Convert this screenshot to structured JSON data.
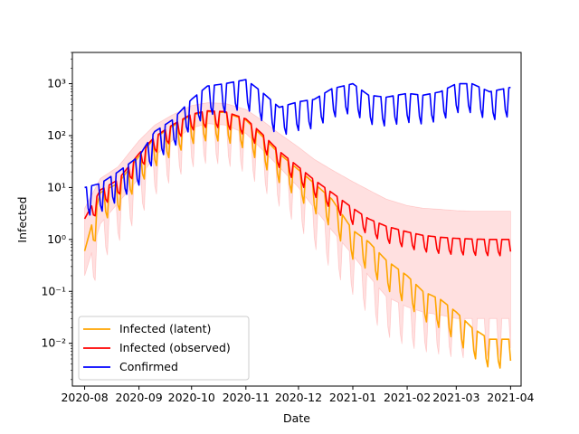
{
  "chart_data": {
    "type": "line",
    "title": "",
    "xlabel": "Date",
    "ylabel": "Infected",
    "yscale": "log",
    "ylim": [
      0.0015,
      4000
    ],
    "xlim": [
      "2020-07-25",
      "2021-04-07"
    ],
    "x_ticks": [
      "2020-08",
      "2020-09",
      "2020-10",
      "2020-11",
      "2020-12",
      "2021-01",
      "2021-02",
      "2021-03",
      "2021-04"
    ],
    "x_tick_dates": [
      "2020-08-01",
      "2020-09-01",
      "2020-10-01",
      "2020-11-01",
      "2020-12-01",
      "2021-01-01",
      "2021-02-01",
      "2021-03-01",
      "2021-04-01"
    ],
    "y_ticks": [
      {
        "value": 0.01,
        "label": "10⁻²"
      },
      {
        "value": 0.1,
        "label": "10⁻¹"
      },
      {
        "value": 1,
        "label": "10⁰"
      },
      {
        "value": 10,
        "label": "10¹"
      },
      {
        "value": 100,
        "label": "10²"
      },
      {
        "value": 1000,
        "label": "10³"
      }
    ],
    "legend_position": "lower-left",
    "grid": false,
    "series": [
      {
        "name": "Infected (latent)",
        "color": "#ffa500",
        "points": [
          [
            "2020-08-01",
            0.6
          ],
          [
            "2020-08-10",
            8
          ],
          [
            "2020-08-20",
            12
          ],
          [
            "2020-09-01",
            40
          ],
          [
            "2020-09-10",
            90
          ],
          [
            "2020-09-20",
            150
          ],
          [
            "2020-10-01",
            250
          ],
          [
            "2020-10-10",
            290
          ],
          [
            "2020-10-20",
            280
          ],
          [
            "2020-11-01",
            200
          ],
          [
            "2020-11-10",
            100
          ],
          [
            "2020-11-20",
            45
          ],
          [
            "2020-12-01",
            22
          ],
          [
            "2020-12-10",
            12
          ],
          [
            "2020-12-20",
            6
          ],
          [
            "2021-01-01",
            1.5
          ],
          [
            "2021-01-10",
            0.9
          ],
          [
            "2021-01-20",
            0.4
          ],
          [
            "2021-02-01",
            0.2
          ],
          [
            "2021-02-10",
            0.1
          ],
          [
            "2021-02-20",
            0.07
          ],
          [
            "2021-03-01",
            0.04
          ],
          [
            "2021-03-10",
            0.02
          ],
          [
            "2021-03-20",
            0.012
          ],
          [
            "2021-04-01",
            0.012
          ]
        ]
      },
      {
        "name": "Infected (observed)",
        "color": "#ff0000",
        "points": [
          [
            "2020-08-01",
            2.5
          ],
          [
            "2020-08-10",
            9
          ],
          [
            "2020-08-20",
            14
          ],
          [
            "2020-09-01",
            45
          ],
          [
            "2020-09-10",
            95
          ],
          [
            "2020-09-20",
            160
          ],
          [
            "2020-10-01",
            260
          ],
          [
            "2020-10-10",
            300
          ],
          [
            "2020-10-20",
            290
          ],
          [
            "2020-11-01",
            210
          ],
          [
            "2020-11-10",
            110
          ],
          [
            "2020-11-20",
            50
          ],
          [
            "2020-12-01",
            25
          ],
          [
            "2020-12-10",
            14
          ],
          [
            "2020-12-20",
            8
          ],
          [
            "2021-01-01",
            4
          ],
          [
            "2021-01-10",
            2.5
          ],
          [
            "2021-01-20",
            1.8
          ],
          [
            "2021-02-01",
            1.4
          ],
          [
            "2021-02-10",
            1.2
          ],
          [
            "2021-02-20",
            1.1
          ],
          [
            "2021-03-01",
            1.05
          ],
          [
            "2021-03-10",
            1.02
          ],
          [
            "2021-03-20",
            1.0
          ],
          [
            "2021-04-01",
            1.0
          ]
        ],
        "band": {
          "lower": [
            0.2,
            2,
            5,
            15,
            40,
            80,
            140,
            170,
            160,
            110,
            55,
            25,
            10,
            4,
            1.5,
            0.5,
            0.2,
            0.08,
            0.05,
            0.04,
            0.035,
            0.03,
            0.03,
            0.03,
            0.03
          ],
          "upper": [
            4,
            15,
            25,
            80,
            160,
            250,
            380,
            430,
            420,
            320,
            200,
            110,
            60,
            35,
            22,
            13,
            9,
            6,
            4.5,
            4,
            3.8,
            3.6,
            3.5,
            3.5,
            3.5
          ]
        }
      },
      {
        "name": "Confirmed",
        "color": "#0000ff",
        "points": [
          [
            "2020-08-01",
            10
          ],
          [
            "2020-08-10",
            12
          ],
          [
            "2020-08-20",
            20
          ],
          [
            "2020-09-01",
            40
          ],
          [
            "2020-09-10",
            120
          ],
          [
            "2020-09-20",
            200
          ],
          [
            "2020-10-01",
            500
          ],
          [
            "2020-10-10",
            900
          ],
          [
            "2020-10-20",
            1000
          ],
          [
            "2020-11-01",
            1200
          ],
          [
            "2020-11-10",
            700
          ],
          [
            "2020-11-20",
            350
          ],
          [
            "2020-12-01",
            450
          ],
          [
            "2020-12-10",
            500
          ],
          [
            "2020-12-20",
            800
          ],
          [
            "2021-01-01",
            1000
          ],
          [
            "2021-01-10",
            600
          ],
          [
            "2021-01-20",
            550
          ],
          [
            "2021-02-01",
            650
          ],
          [
            "2021-02-10",
            600
          ],
          [
            "2021-02-20",
            700
          ],
          [
            "2021-03-01",
            1000
          ],
          [
            "2021-03-10",
            1000
          ],
          [
            "2021-03-20",
            700
          ],
          [
            "2021-04-01",
            850
          ]
        ]
      }
    ]
  }
}
